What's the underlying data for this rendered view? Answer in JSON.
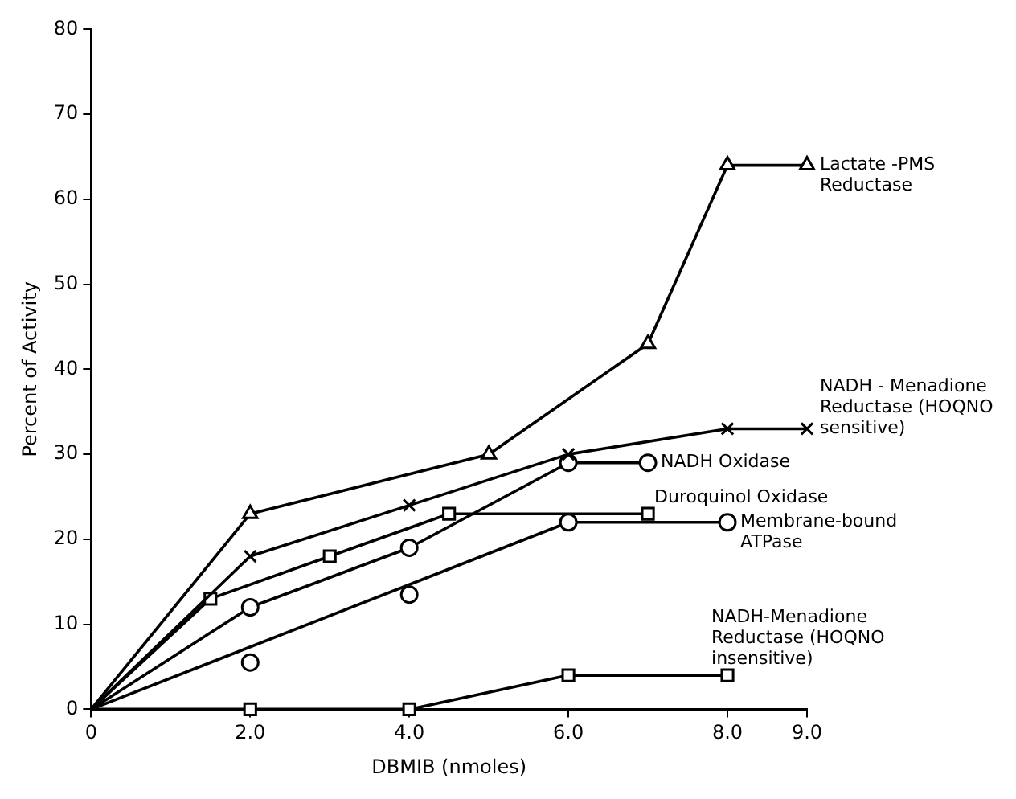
{
  "chart_data": {
    "type": "line",
    "xlabel": "DBMIB (nmoles)",
    "ylabel": "Percent of Activity",
    "xlim": [
      0,
      9
    ],
    "xticks": [
      {
        "value": 0,
        "label": "0"
      },
      {
        "value": 2,
        "label": "2.0"
      },
      {
        "value": 4,
        "label": "4.0"
      },
      {
        "value": 6,
        "label": "6.0"
      },
      {
        "value": 8,
        "label": "8.0"
      },
      {
        "value": 9,
        "label": "9.0"
      }
    ],
    "ylim": [
      0,
      80
    ],
    "yticks": [
      0,
      10,
      20,
      30,
      40,
      50,
      60,
      70,
      80
    ],
    "grid": false,
    "legend": false,
    "series": [
      {
        "name": "Lactate -PMS Reductase",
        "color": "#000000",
        "marker": "triangle",
        "x": [
          0,
          2,
          5,
          7,
          8,
          9
        ],
        "values": [
          0,
          23,
          30,
          43,
          64,
          64
        ]
      },
      {
        "name": "NADH - Menadione Reductase (HOQNO sensitive)",
        "color": "#000000",
        "marker": "cross",
        "x": [
          0,
          2,
          4,
          6,
          8,
          9
        ],
        "values": [
          0,
          18,
          24,
          30,
          33,
          33
        ]
      },
      {
        "name": "NADH Oxidase",
        "color": "#000000",
        "marker": "circle",
        "x": [
          0,
          2,
          4,
          6,
          7
        ],
        "values": [
          0,
          12,
          19,
          29,
          29
        ]
      },
      {
        "name": "Duroquinol Oxidase",
        "color": "#000000",
        "marker": "square",
        "x": [
          0,
          1.5,
          3,
          4.5,
          7
        ],
        "values": [
          0,
          13,
          18,
          23,
          23
        ]
      },
      {
        "name": "Membrane-bound ATPase",
        "color": "#000000",
        "type": "scatter",
        "marker": "circle",
        "x": [
          2,
          4,
          6,
          8
        ],
        "values": [
          5.5,
          13.5,
          22,
          22
        ]
      },
      {
        "color": "#000000",
        "marker": "none",
        "x": [
          0,
          6,
          8
        ],
        "values": [
          0,
          22,
          22
        ]
      },
      {
        "name": "NADH-Menadione Reductase (HOQNO insensitive)",
        "color": "#000000",
        "marker": "square",
        "x": [
          0,
          2,
          4,
          6,
          8
        ],
        "values": [
          0,
          0,
          0,
          4,
          4
        ]
      }
    ]
  }
}
